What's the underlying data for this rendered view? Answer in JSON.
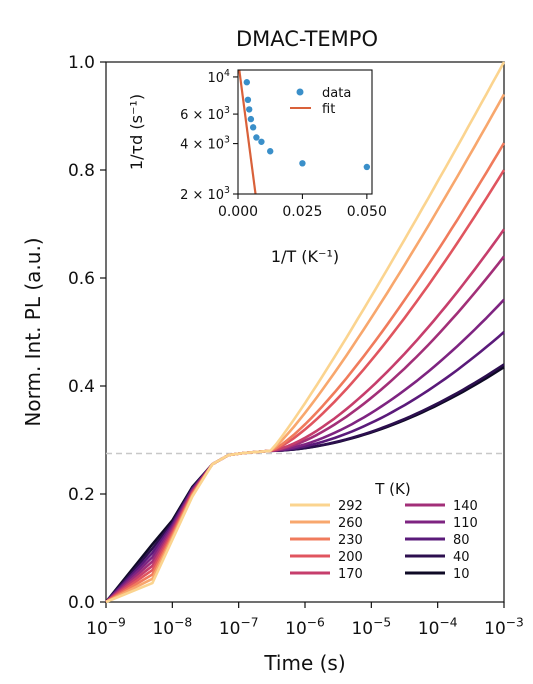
{
  "chart_data": [
    {
      "type": "line",
      "title": "DMAC-TEMPO",
      "xlabel": "Time (s)",
      "ylabel": "Norm. Int. PL (a.u.)",
      "xscale": "log",
      "xlim": [
        1e-09,
        0.001
      ],
      "ylim": [
        0.0,
        1.0
      ],
      "x_ticks": [
        1e-09,
        1e-08,
        1e-07,
        1e-06,
        1e-05,
        0.0001,
        0.001
      ],
      "x_tick_labels": [
        {
          "base": "10",
          "exp": "−9"
        },
        {
          "base": "10",
          "exp": "−8"
        },
        {
          "base": "10",
          "exp": "−7"
        },
        {
          "base": "10",
          "exp": "−6"
        },
        {
          "base": "10",
          "exp": "−5"
        },
        {
          "base": "10",
          "exp": "−4"
        },
        {
          "base": "10",
          "exp": "−3"
        }
      ],
      "y_ticks": [
        0.0,
        0.2,
        0.4,
        0.6,
        0.8,
        1.0
      ],
      "y_tick_labels": [
        "0.0",
        "0.2",
        "0.4",
        "0.6",
        "0.8",
        "1.0"
      ],
      "reference_line": {
        "y": 0.275,
        "style": "dashed",
        "color": "#c8c8c8"
      },
      "legend": {
        "title": "T (K)",
        "placement": "bottom-right",
        "columns": 2
      },
      "series": [
        {
          "name": "292",
          "color": "#fbd48f",
          "final": 1.0
        },
        {
          "name": "260",
          "color": "#f8a76d",
          "final": 0.94
        },
        {
          "name": "230",
          "color": "#f07b5c",
          "final": 0.85
        },
        {
          "name": "200",
          "color": "#e0555f",
          "final": 0.8
        },
        {
          "name": "170",
          "color": "#c63e6c",
          "final": 0.69
        },
        {
          "name": "140",
          "color": "#a22f78",
          "final": 0.64
        },
        {
          "name": "110",
          "color": "#7e2481",
          "final": 0.56
        },
        {
          "name": "80",
          "color": "#5a1a7a",
          "final": 0.5
        },
        {
          "name": "40",
          "color": "#2c0f4f",
          "final": 0.44
        },
        {
          "name": "10",
          "color": "#0e0a25",
          "final": 0.435
        }
      ]
    },
    {
      "type": "scatter",
      "xlabel": "1/T (K⁻¹)",
      "ylabel": "1/τd (s⁻¹)",
      "yscale": "log",
      "xlim": [
        0,
        0.052
      ],
      "ylim": [
        2000,
        11000
      ],
      "x_ticks": [
        0,
        0.025,
        0.05
      ],
      "x_tick_labels": [
        "0.000",
        "0.025",
        "0.050"
      ],
      "y_ticks": [
        2000,
        4000,
        6000,
        10000
      ],
      "y_tick_labels": [
        {
          "base": "2 × 10",
          "exp": "3"
        },
        {
          "base": "4 × 10",
          "exp": "3"
        },
        {
          "base": "6 × 10",
          "exp": "3"
        },
        {
          "base": "10",
          "exp": "4"
        }
      ],
      "legend": {
        "placement": "top-right"
      },
      "data": {
        "name": "data",
        "color": "#3a8fc9",
        "x": [
          0.00342,
          0.00385,
          0.00435,
          0.005,
          0.00588,
          0.00714,
          0.00909,
          0.0125,
          0.025,
          0.05
        ],
        "y": [
          9300,
          7300,
          6400,
          5600,
          5000,
          4350,
          4100,
          3600,
          3050,
          2900
        ]
      },
      "fit": {
        "name": "fit",
        "color": "#d9613a",
        "x": [
          0.0005,
          0.0068
        ],
        "y": [
          11000,
          2000
        ]
      }
    }
  ]
}
